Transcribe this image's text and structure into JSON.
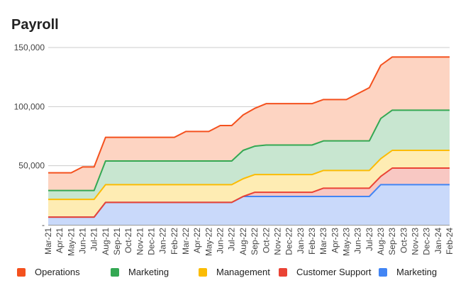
{
  "chart_data": {
    "type": "area",
    "stacked": true,
    "title": "Payroll",
    "xlabel": "",
    "ylabel": "",
    "ylim": [
      0,
      150000
    ],
    "yticks": [
      {
        "value": 0,
        "label": "-"
      },
      {
        "value": 50000,
        "label": "50,000"
      },
      {
        "value": 100000,
        "label": "100,000"
      },
      {
        "value": 150000,
        "label": "150,000"
      }
    ],
    "grid": true,
    "legend_position": "bottom",
    "x": [
      "Mar-21",
      "Apr-21",
      "May-21",
      "Jun-21",
      "Jul-21",
      "Aug-21",
      "Sep-21",
      "Oct-21",
      "Nov-21",
      "Dec-21",
      "Jan-22",
      "Feb-22",
      "Mar-22",
      "Apr-22",
      "May-22",
      "Jun-22",
      "Jul-22",
      "Aug-22",
      "Sep-22",
      "Oct-22",
      "Nov-22",
      "Dec-22",
      "Jan-23",
      "Feb-23",
      "Mar-23",
      "Apr-23",
      "May-23",
      "Jun-23",
      "Jul-23",
      "Aug-23",
      "Sep-23",
      "Oct-23",
      "Nov-23",
      "Dec-23",
      "Jan-24",
      "Feb-24"
    ],
    "series": [
      {
        "name": "Marketing",
        "line_color": "#4285f4",
        "fill_color": "#c9d9fa",
        "values": [
          6500,
          6500,
          6500,
          6500,
          6500,
          19000,
          19000,
          19000,
          19000,
          19000,
          19000,
          19000,
          19000,
          19000,
          19000,
          19000,
          19000,
          24000,
          24000,
          24000,
          24000,
          24000,
          24000,
          24000,
          24000,
          24000,
          24000,
          24000,
          24000,
          34000,
          34000,
          34000,
          34000,
          34000,
          34000,
          34000
        ]
      },
      {
        "name": "Customer Support",
        "line_color": "#ea4335",
        "fill_color": "#f8c8c3",
        "values": [
          0,
          0,
          0,
          0,
          0,
          0,
          0,
          0,
          0,
          0,
          0,
          0,
          0,
          0,
          0,
          0,
          0,
          0,
          3500,
          3500,
          3500,
          3500,
          3500,
          3500,
          7000,
          7000,
          7000,
          7000,
          7000,
          7000,
          14000,
          14000,
          14000,
          14000,
          14000,
          14000
        ]
      },
      {
        "name": "Management",
        "line_color": "#fbbc04",
        "fill_color": "#feecb3",
        "values": [
          15000,
          15000,
          15000,
          15000,
          15000,
          15000,
          15000,
          15000,
          15000,
          15000,
          15000,
          15000,
          15000,
          15000,
          15000,
          15000,
          15000,
          15000,
          15000,
          15000,
          15000,
          15000,
          15000,
          15000,
          15000,
          15000,
          15000,
          15000,
          15000,
          15000,
          15000,
          15000,
          15000,
          15000,
          15000,
          15000
        ]
      },
      {
        "name": "Marketing",
        "line_color": "#34a853",
        "fill_color": "#c8e6d0",
        "values": [
          7500,
          7500,
          7500,
          7500,
          7500,
          20000,
          20000,
          20000,
          20000,
          20000,
          20000,
          20000,
          20000,
          20000,
          20000,
          20000,
          20000,
          24000,
          24000,
          25000,
          25000,
          25000,
          25000,
          25000,
          25000,
          25000,
          25000,
          25000,
          25000,
          34000,
          34000,
          34000,
          34000,
          34000,
          34000,
          34000
        ]
      },
      {
        "name": "Operations",
        "line_color": "#f4511e",
        "fill_color": "#fdd4c2",
        "values": [
          15000,
          15000,
          15000,
          20000,
          20000,
          20000,
          20000,
          20000,
          20000,
          20000,
          20000,
          20000,
          25000,
          25000,
          25000,
          30000,
          30000,
          30000,
          32000,
          35000,
          35000,
          35000,
          35000,
          35000,
          35000,
          35000,
          35000,
          40000,
          45000,
          45000,
          45000,
          45000,
          45000,
          45000,
          45000,
          45000
        ]
      }
    ],
    "legend_order": [
      4,
      3,
      2,
      1,
      0
    ]
  }
}
